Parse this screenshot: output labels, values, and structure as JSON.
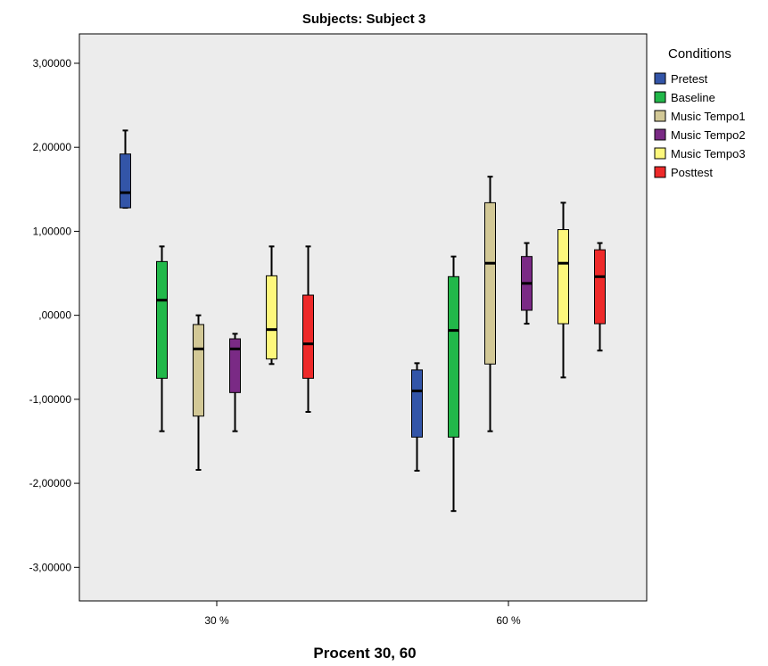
{
  "chart_data": {
    "type": "boxplot",
    "title": "Subjects: Subject 3",
    "xlabel": "Procent 30, 60",
    "ylabel": "",
    "categories": [
      "30 %",
      "60 %"
    ],
    "ylim": [
      -3.4,
      3.35
    ],
    "yticks": [
      3,
      2,
      1,
      0,
      -1,
      -2,
      -3
    ],
    "ytick_labels": [
      "3,00000",
      "2,00000",
      "1,00000",
      ",00000",
      "-1,00000",
      "-2,00000",
      "-3,00000"
    ],
    "grid": false,
    "legend": {
      "title": "Conditions",
      "position": "right"
    },
    "series": [
      {
        "name": "Pretest",
        "color": "#3355a8",
        "values": [
          {
            "min": 1.28,
            "q1": 1.28,
            "median": 1.46,
            "q3": 1.92,
            "max": 2.2
          },
          {
            "min": -1.85,
            "q1": -1.45,
            "median": -0.9,
            "q3": -0.65,
            "max": -0.57
          }
        ]
      },
      {
        "name": "Baseline",
        "color": "#22b84a",
        "values": [
          {
            "min": -1.38,
            "q1": -0.75,
            "median": 0.18,
            "q3": 0.64,
            "max": 0.82
          },
          {
            "min": -2.33,
            "q1": -1.45,
            "median": -0.18,
            "q3": 0.46,
            "max": 0.7
          }
        ]
      },
      {
        "name": "Music Tempo1",
        "color": "#d2c896",
        "values": [
          {
            "min": -1.84,
            "q1": -1.2,
            "median": -0.4,
            "q3": -0.11,
            "max": 0.0
          },
          {
            "min": -1.38,
            "q1": -0.58,
            "median": 0.62,
            "q3": 1.34,
            "max": 1.65
          }
        ]
      },
      {
        "name": "Music Tempo2",
        "color": "#7a2a85",
        "values": [
          {
            "min": -1.38,
            "q1": -0.92,
            "median": -0.4,
            "q3": -0.28,
            "max": -0.22
          },
          {
            "min": -0.1,
            "q1": 0.06,
            "median": 0.38,
            "q3": 0.7,
            "max": 0.86
          }
        ]
      },
      {
        "name": "Music Tempo3",
        "color": "#fdf77c",
        "values": [
          {
            "min": -0.58,
            "q1": -0.52,
            "median": -0.17,
            "q3": 0.47,
            "max": 0.82
          },
          {
            "min": -0.74,
            "q1": -0.1,
            "median": 0.62,
            "q3": 1.02,
            "max": 1.34
          }
        ]
      },
      {
        "name": "Posttest",
        "color": "#ee2a2a",
        "values": [
          {
            "min": -1.15,
            "q1": -0.75,
            "median": -0.34,
            "q3": 0.24,
            "max": 0.82
          },
          {
            "min": -0.42,
            "q1": -0.1,
            "median": 0.46,
            "q3": 0.78,
            "max": 0.86
          }
        ]
      }
    ]
  }
}
